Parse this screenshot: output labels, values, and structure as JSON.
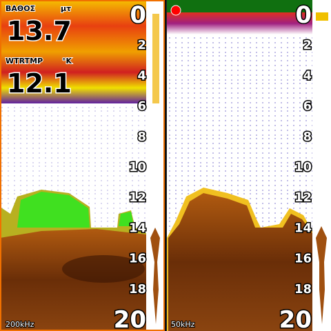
{
  "left_panel": {
    "depth_label": "ΒΑΘΟΣ",
    "depth_unit": "μτ",
    "depth_value": "13.7",
    "temp_label": "WTRTMP",
    "temp_unit": "°K",
    "temp_value": "12.1",
    "depth_scale": [
      0,
      2,
      4,
      6,
      8,
      10,
      12,
      14,
      16,
      18,
      20
    ],
    "frequency": "200kHz"
  },
  "right_panel": {
    "depth_scale": [
      0,
      2,
      4,
      6,
      8,
      10,
      12,
      14,
      16,
      18,
      20
    ],
    "frequency": "50kHz"
  }
}
